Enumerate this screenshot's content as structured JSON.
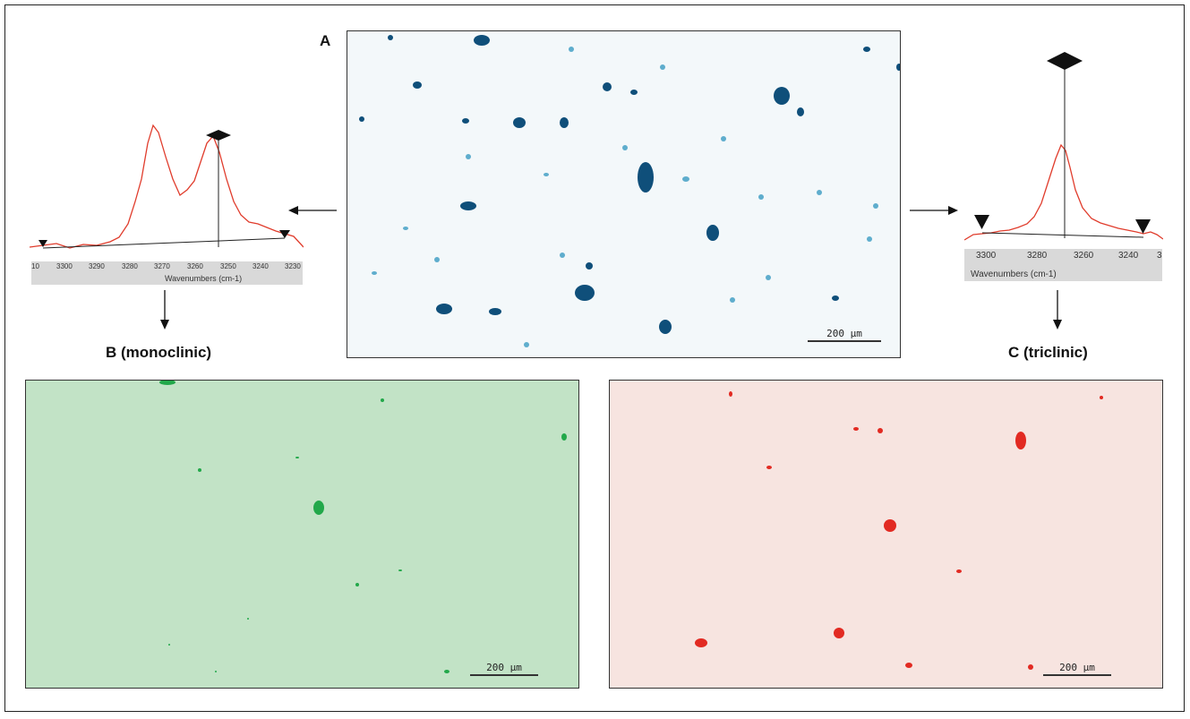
{
  "panels": {
    "a": {
      "label": "A",
      "scale_label": "200 µm",
      "color": "#0f4f7a"
    },
    "b": {
      "label": "B (monoclinic)",
      "scale_label": "200 µm",
      "background": "#c2e3c6",
      "particle_color": "#22a84a"
    },
    "c": {
      "label": "C (triclinic)",
      "scale_label": "200 µm",
      "background": "#f7e4e0",
      "particle_color": "#e22a22"
    }
  },
  "spectra": {
    "left": {
      "ticks": [
        "10",
        "3300",
        "3290",
        "3280",
        "3270",
        "3260",
        "3250",
        "3240",
        "3230"
      ],
      "xlabel": "Wavenumbers (cm-1)",
      "line_color": "#e03c2c"
    },
    "right": {
      "ticks": [
        "3300",
        "3280",
        "3260",
        "3240",
        "3"
      ],
      "xlabel": "Wavenumbers (cm-1)",
      "line_color": "#e03c2c"
    }
  }
}
